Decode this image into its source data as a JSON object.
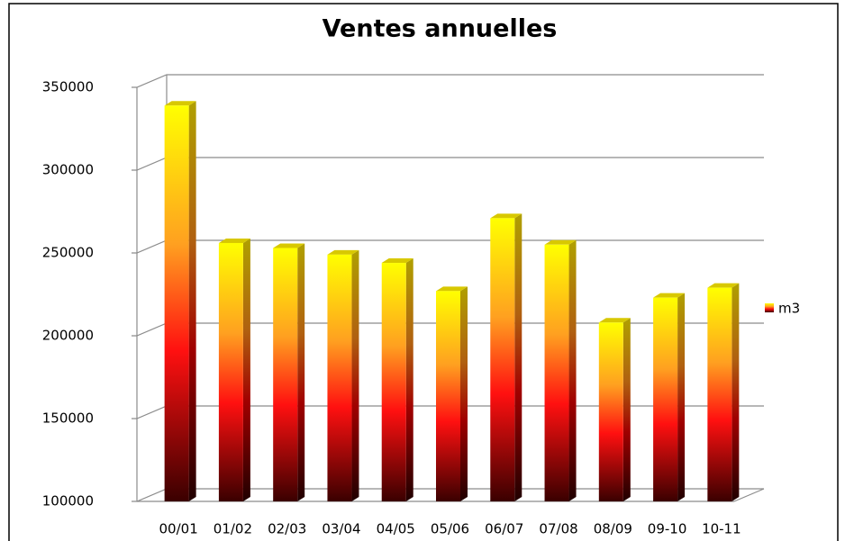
{
  "chart_data": {
    "type": "bar",
    "title": "Ventes annuelles",
    "categories": [
      "00/01",
      "01/02",
      "02/03",
      "03/04",
      "04/05",
      "05/06",
      "06/07",
      "07/08",
      "08/09",
      "09-10",
      "10-11"
    ],
    "series": [
      {
        "name": "m3",
        "values": [
          339000,
          256000,
          253000,
          249000,
          244000,
          227000,
          271000,
          255000,
          208000,
          223000,
          229000
        ]
      }
    ],
    "ylim": [
      100000,
      350000
    ],
    "yticks": [
      100000,
      150000,
      200000,
      250000,
      300000,
      350000
    ],
    "grid": true,
    "legend": "right"
  }
}
